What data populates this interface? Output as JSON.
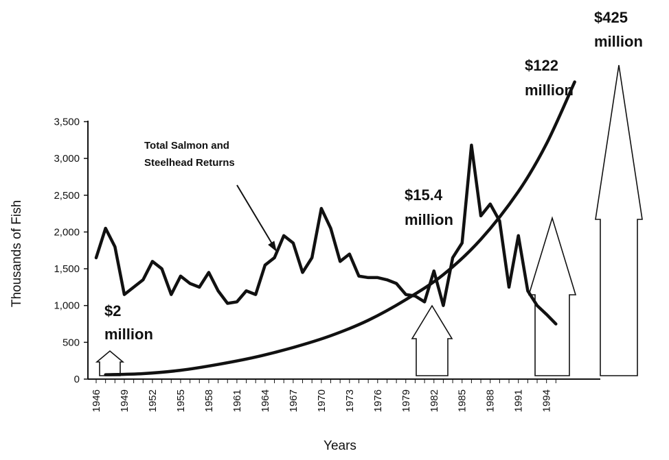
{
  "chart_data": {
    "type": "line",
    "xlabel": "Years",
    "ylabel": "Thousands of Fish",
    "xlim": [
      1946,
      1998
    ],
    "ylim": [
      0,
      3500
    ],
    "y_ticks": [
      0,
      500,
      1000,
      1500,
      2000,
      2500,
      3000,
      3500
    ],
    "y_tick_labels": [
      "0",
      "500",
      "1,000",
      "1,500",
      "2,000",
      "2,500",
      "3,000",
      "3,500"
    ],
    "x_ticks": [
      1946,
      1949,
      1952,
      1955,
      1958,
      1961,
      1964,
      1967,
      1970,
      1973,
      1976,
      1979,
      1982,
      1985,
      1988,
      1991,
      1994
    ],
    "x_tick_labels": [
      "1946",
      "1949",
      "1952",
      "1955",
      "1958",
      "1961",
      "1964",
      "1967",
      "1970",
      "1973",
      "1976",
      "1979",
      "1982",
      "1985",
      "1988",
      "1991",
      "1994"
    ],
    "series": [
      {
        "name": "Total Salmon and Steelhead Returns",
        "x": [
          1946,
          1947,
          1948,
          1949,
          1950,
          1951,
          1952,
          1953,
          1954,
          1955,
          1956,
          1957,
          1958,
          1959,
          1960,
          1961,
          1962,
          1963,
          1964,
          1965,
          1966,
          1967,
          1968,
          1969,
          1970,
          1971,
          1972,
          1973,
          1974,
          1975,
          1976,
          1977,
          1978,
          1979,
          1980,
          1981,
          1982,
          1983,
          1984,
          1985,
          1986,
          1987,
          1988,
          1989,
          1990,
          1991,
          1992,
          1993,
          1994,
          1995
        ],
        "values": [
          1650,
          2050,
          1800,
          1150,
          1250,
          1350,
          1600,
          1500,
          1150,
          1400,
          1300,
          1250,
          1450,
          1200,
          1030,
          1050,
          1200,
          1150,
          1550,
          1650,
          1950,
          1850,
          1450,
          1650,
          2320,
          2050,
          1600,
          1700,
          1400,
          1380,
          1380,
          1350,
          1300,
          1150,
          1130,
          1050,
          1470,
          1000,
          1650,
          1850,
          3180,
          2220,
          2380,
          2150,
          1250,
          1950,
          1200,
          1000,
          880,
          750
        ]
      },
      {
        "name": "",
        "x": [
          1947,
          1951,
          1955,
          1959,
          1963,
          1967,
          1971,
          1975,
          1979,
          1983,
          1987,
          1991,
          1994,
          1997
        ],
        "values": [
          60,
          75,
          120,
          200,
          300,
          430,
          590,
          800,
          1080,
          1420,
          1900,
          2550,
          3200,
          4040
        ]
      }
    ],
    "annotations": [
      {
        "text": "Total Salmon and Steelhead Returns",
        "lines": [
          "Total Salmon and",
          "Steelhead Returns"
        ]
      },
      {
        "text": "$2 million",
        "lines": [
          "$2",
          "million"
        ]
      },
      {
        "text": "$15.4 million",
        "lines": [
          "$15.4",
          "million"
        ]
      },
      {
        "text": "$122 million",
        "lines": [
          "$122",
          "million"
        ]
      },
      {
        "text": "$425 million",
        "lines": [
          "$425",
          "million"
        ]
      }
    ],
    "arrows": [
      {
        "label": "$2 million",
        "x": 1948,
        "value": 2
      },
      {
        "label": "$15.4 million",
        "x": 1979,
        "value": 15.4
      },
      {
        "label": "$122 million",
        "x": 1991,
        "value": 122
      },
      {
        "label": "$425 million",
        "x": 1997,
        "value": 425
      }
    ],
    "grid": false,
    "legend": "none"
  }
}
